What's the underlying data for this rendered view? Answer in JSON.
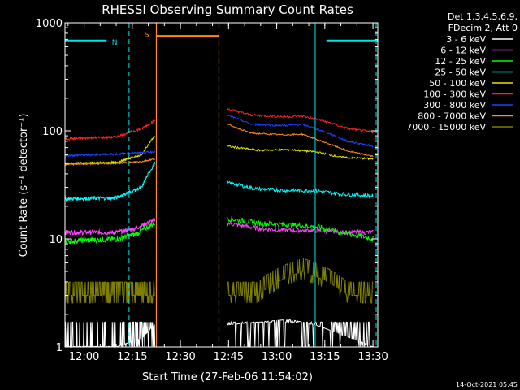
{
  "chart_data": {
    "type": "line",
    "title": "RHESSI Observing Summary Count Rates",
    "xlabel": "Start Time (27-Feb-06 11:54:02)",
    "ylabel": "Count Rate (s⁻¹ detector⁻¹)",
    "y_scale": "log",
    "ylim": [
      1,
      1000
    ],
    "xlim": [
      "11:54:02",
      "13:31:30"
    ],
    "x_ticks": [
      "12:00",
      "12:15",
      "12:30",
      "12:45",
      "13:00",
      "13:15",
      "13:30"
    ],
    "y_ticks": [
      "1",
      "10",
      "100",
      "1000"
    ],
    "grid": false,
    "legend_position": "right",
    "legend_header": [
      "Det 1,3,4,5,6,9,",
      "FDecim 2, Att 0"
    ],
    "data_gap": [
      "12:22:30",
      "12:44:30"
    ],
    "timestamp": "14-Oct-2021 05:45",
    "markers": [
      {
        "label": "N",
        "kind": "night",
        "color": "#00e5e5",
        "level": 680,
        "ranges": [
          [
            "11:54:02",
            "12:07:00"
          ],
          [
            "13:15:30",
            "13:31:30"
          ]
        ]
      },
      {
        "label": "S",
        "kind": "saa",
        "color": "#ff8c1a",
        "level": 750,
        "ranges": [
          [
            "12:22:30",
            "12:42:00"
          ]
        ]
      }
    ],
    "night_lines": [
      "11:54:02",
      "12:14:00",
      "13:12:00",
      "13:31:00"
    ],
    "saa_lines": [
      "12:22:30",
      "12:42:00"
    ],
    "series": [
      {
        "name": "3 - 6 keV",
        "color": "#ffffff",
        "noise": "digital",
        "seg1": [
          [
            0,
            1
          ],
          [
            16,
            1
          ],
          [
            24,
            1.2
          ],
          [
            28,
            1.6
          ]
        ],
        "seg2": [
          [
            50.5,
            1.6
          ],
          [
            60,
            1.7
          ],
          [
            70,
            1.8
          ],
          [
            78,
            1.6
          ],
          [
            86,
            1.3
          ],
          [
            96,
            1
          ]
        ]
      },
      {
        "name": "6 - 12 keV",
        "color": "#ff44ff",
        "noise": 0.05,
        "seg1": [
          [
            0,
            11.5
          ],
          [
            16,
            11.5
          ],
          [
            22,
            12.5
          ],
          [
            28,
            15
          ]
        ],
        "seg2": [
          [
            50.5,
            14
          ],
          [
            60,
            12.5
          ],
          [
            70,
            12
          ],
          [
            78,
            12
          ],
          [
            86,
            11.5
          ],
          [
            96,
            11.5
          ]
        ]
      },
      {
        "name": "12 - 25 keV",
        "color": "#00ff00",
        "noise": 0.06,
        "seg1": [
          [
            0,
            9.5
          ],
          [
            16,
            10
          ],
          [
            22,
            11
          ],
          [
            28,
            14
          ]
        ],
        "seg2": [
          [
            50.5,
            15.5
          ],
          [
            60,
            14
          ],
          [
            70,
            13.5
          ],
          [
            78,
            13
          ],
          [
            86,
            11.5
          ],
          [
            96,
            10
          ]
        ]
      },
      {
        "name": "25 - 50 keV",
        "color": "#00ffff",
        "noise": 0.04,
        "seg1": [
          [
            0,
            23.5
          ],
          [
            16,
            24
          ],
          [
            24,
            30
          ],
          [
            28,
            50
          ]
        ],
        "seg2": [
          [
            50.5,
            33
          ],
          [
            60,
            29
          ],
          [
            70,
            28
          ],
          [
            78,
            28
          ],
          [
            86,
            26
          ],
          [
            96,
            25
          ]
        ]
      },
      {
        "name": "50 - 100 keV",
        "color": "#e6e600",
        "noise": 0.02,
        "seg1": [
          [
            0,
            50
          ],
          [
            16,
            51
          ],
          [
            24,
            60
          ],
          [
            28,
            90
          ]
        ],
        "seg2": [
          [
            50.5,
            72
          ],
          [
            60,
            66
          ],
          [
            70,
            67
          ],
          [
            78,
            64
          ],
          [
            86,
            57
          ],
          [
            96,
            55
          ]
        ]
      },
      {
        "name": "100 - 300 keV",
        "color": "#ff2020",
        "noise": 0.025,
        "seg1": [
          [
            0,
            84
          ],
          [
            16,
            88
          ],
          [
            24,
            105
          ],
          [
            28,
            125
          ]
        ],
        "seg2": [
          [
            50.5,
            160
          ],
          [
            58,
            140
          ],
          [
            68,
            135
          ],
          [
            74,
            137
          ],
          [
            80,
            125
          ],
          [
            88,
            105
          ],
          [
            96,
            97
          ]
        ]
      },
      {
        "name": "300 - 800 keV",
        "color": "#2040ff",
        "noise": 0.02,
        "seg1": [
          [
            0,
            59
          ],
          [
            16,
            61
          ],
          [
            24,
            63
          ],
          [
            28,
            64
          ]
        ],
        "seg2": [
          [
            50.5,
            140
          ],
          [
            58,
            115
          ],
          [
            68,
            112
          ],
          [
            74,
            115
          ],
          [
            80,
            100
          ],
          [
            88,
            80
          ],
          [
            96,
            72
          ]
        ]
      },
      {
        "name": "800 - 7000 keV",
        "color": "#ff8c1a",
        "noise": 0.015,
        "seg1": [
          [
            0,
            49
          ],
          [
            16,
            50
          ],
          [
            24,
            52
          ],
          [
            28,
            55
          ]
        ],
        "seg2": [
          [
            50.5,
            115
          ],
          [
            58,
            95
          ],
          [
            68,
            92
          ],
          [
            74,
            93
          ],
          [
            80,
            80
          ],
          [
            88,
            65
          ],
          [
            96,
            58
          ]
        ]
      },
      {
        "name": "7000 - 15000 keV",
        "color": "#808000",
        "noise": "digital-high",
        "seg1": [
          [
            0,
            3
          ],
          [
            16,
            3
          ],
          [
            28,
            3
          ]
        ],
        "seg2": [
          [
            50.5,
            3
          ],
          [
            60,
            3
          ],
          [
            66,
            4
          ],
          [
            74,
            5
          ],
          [
            82,
            4
          ],
          [
            88,
            3
          ],
          [
            96,
            3
          ]
        ]
      }
    ]
  }
}
